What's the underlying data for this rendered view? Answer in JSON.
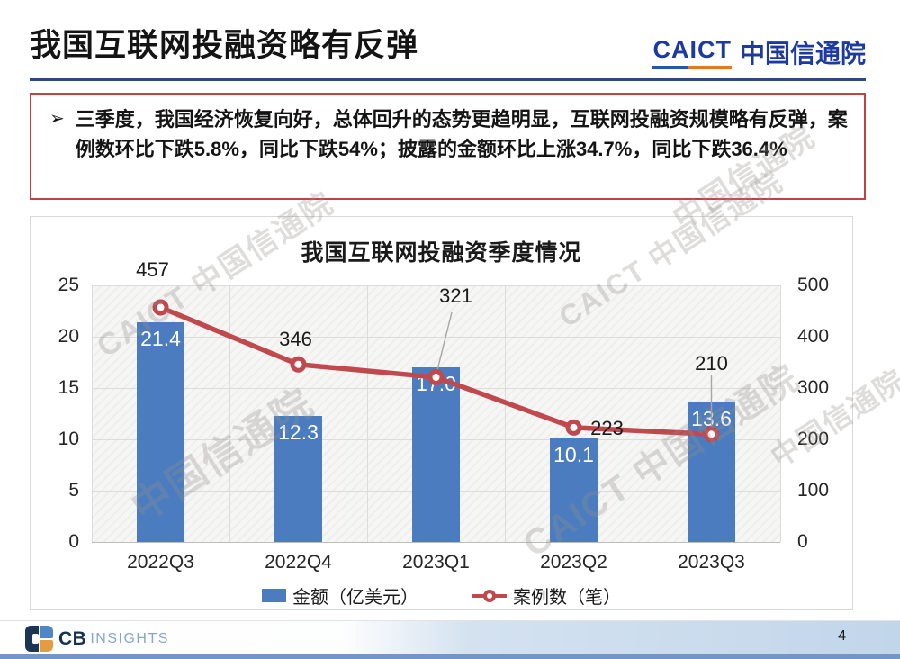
{
  "slide": {
    "title": "我国互联网投融资略有反弹",
    "page_number": "4"
  },
  "header_logo": {
    "en": "CAICT",
    "cn": "中国信通院"
  },
  "highlight_box": {
    "bullet": "➢",
    "text": "三季度，我国经济恢复向好，总体回升的态势更趋明显，互联网投融资规模略有反弹，案例数环比下跌5.8%，同比下跌54%；披露的金额环比上涨34.7%，同比下跌36.4%"
  },
  "watermark": {
    "full": "CAICT 中国信通院",
    "short": "中国信通院"
  },
  "footer": {
    "brand_cb": "CB",
    "brand_insights": "INSIGHTS",
    "page": "4"
  },
  "chart_data": {
    "type": "bar",
    "combo": "bar+line",
    "title": "我国互联网投融资季度情况",
    "categories": [
      "2022Q3",
      "2022Q4",
      "2023Q1",
      "2023Q2",
      "2023Q3"
    ],
    "series": [
      {
        "name": "金额（亿美元）",
        "type": "bar",
        "axis": "left",
        "values": [
          21.4,
          12.3,
          17.0,
          10.1,
          13.6
        ],
        "value_labels": [
          "21.4",
          "12.3",
          "17.0",
          "10.1",
          "13.6"
        ],
        "color": "#4a7cbf"
      },
      {
        "name": "案例数（笔）",
        "type": "line",
        "axis": "right",
        "values": [
          457,
          346,
          321,
          223,
          210
        ],
        "value_labels": [
          "457",
          "346",
          "321",
          "223",
          "210"
        ],
        "color": "#c0494e"
      }
    ],
    "left_axis": {
      "range": [
        0,
        25
      ],
      "ticks": [
        "25",
        "20",
        "15",
        "10",
        "5",
        "0"
      ]
    },
    "right_axis": {
      "range": [
        0,
        500
      ],
      "ticks": [
        "500",
        "400",
        "300",
        "200",
        "100",
        "0"
      ]
    },
    "grid": true,
    "legend_position": "bottom"
  }
}
